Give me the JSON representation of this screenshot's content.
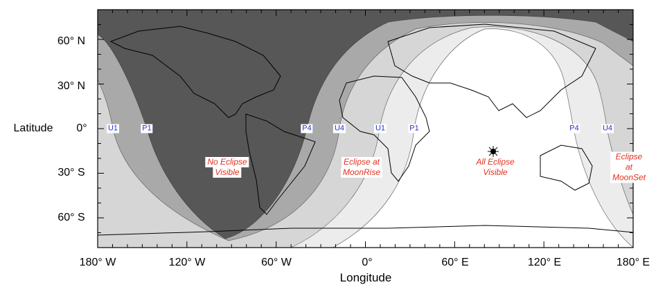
{
  "axes": {
    "ylabel": "Latitude",
    "xlabel": "Longitude",
    "lat_ticks": [
      "60° N",
      "30° N",
      "0°",
      "30° S",
      "60° S"
    ],
    "lon_ticks": [
      "180° W",
      "120° W",
      "60° W",
      "0°",
      "60° E",
      "120° E",
      "180° E"
    ]
  },
  "contact_labels": [
    "U1",
    "P1",
    "P4",
    "U4",
    "U1",
    "P1",
    "P4",
    "U4"
  ],
  "zones": [
    {
      "line1": "No Eclipse",
      "line2": "Visible"
    },
    {
      "line1": "Eclipse at",
      "line2": "MoonRise"
    },
    {
      "line1": "All Eclipse",
      "line2": "Visible"
    },
    {
      "line1": "Eclipse at",
      "line2": "MoonSet"
    }
  ],
  "colors": {
    "no_eclipse": "#575757",
    "penumbral": "#a9a9a9",
    "partial": "#d6d6d6",
    "near_full": "#ececec",
    "all_visible": "#ffffff",
    "zone_text": "#e0301e",
    "contact_text": "#2233cc"
  },
  "markers": {
    "subsolar_point_icon": "sun-star-icon"
  }
}
